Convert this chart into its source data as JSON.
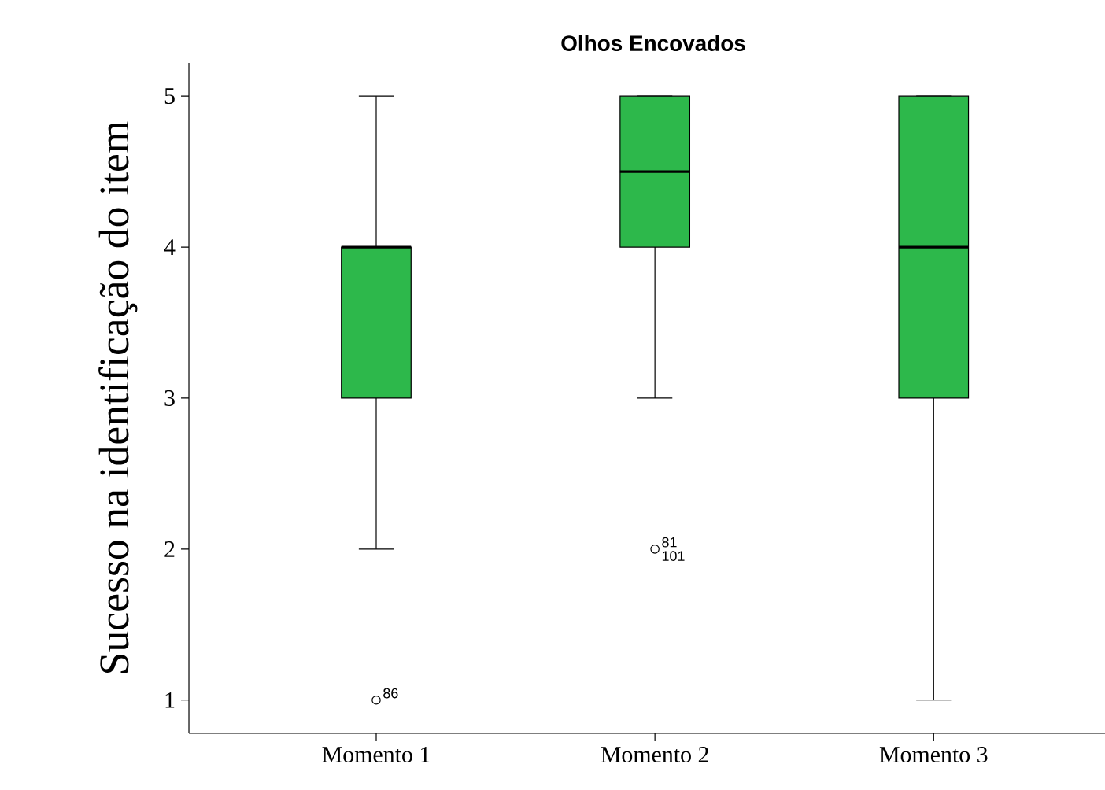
{
  "chart_data": {
    "type": "box",
    "title": "Olhos Encovados",
    "ylabel": "Sucesso na identificação do item",
    "categories": [
      "Momento 1",
      "Momento 2",
      "Momento 3"
    ],
    "color": "#2db84b",
    "boxes": [
      {
        "low": 2,
        "q1": 3,
        "median": 4,
        "q3": 4,
        "high": 5,
        "outliers": [
          1
        ]
      },
      {
        "low": 3,
        "q1": 4,
        "median": 4.5,
        "q3": 5,
        "high": 5,
        "outliers": [
          2
        ]
      },
      {
        "low": 1,
        "q1": 3,
        "median": 4,
        "q3": 5,
        "high": 5
      }
    ],
    "ylim": [
      0.78,
      5.22
    ],
    "yticks": [
      1,
      2,
      3,
      4,
      5
    ],
    "annotations": [
      "86",
      "81",
      "101"
    ]
  }
}
